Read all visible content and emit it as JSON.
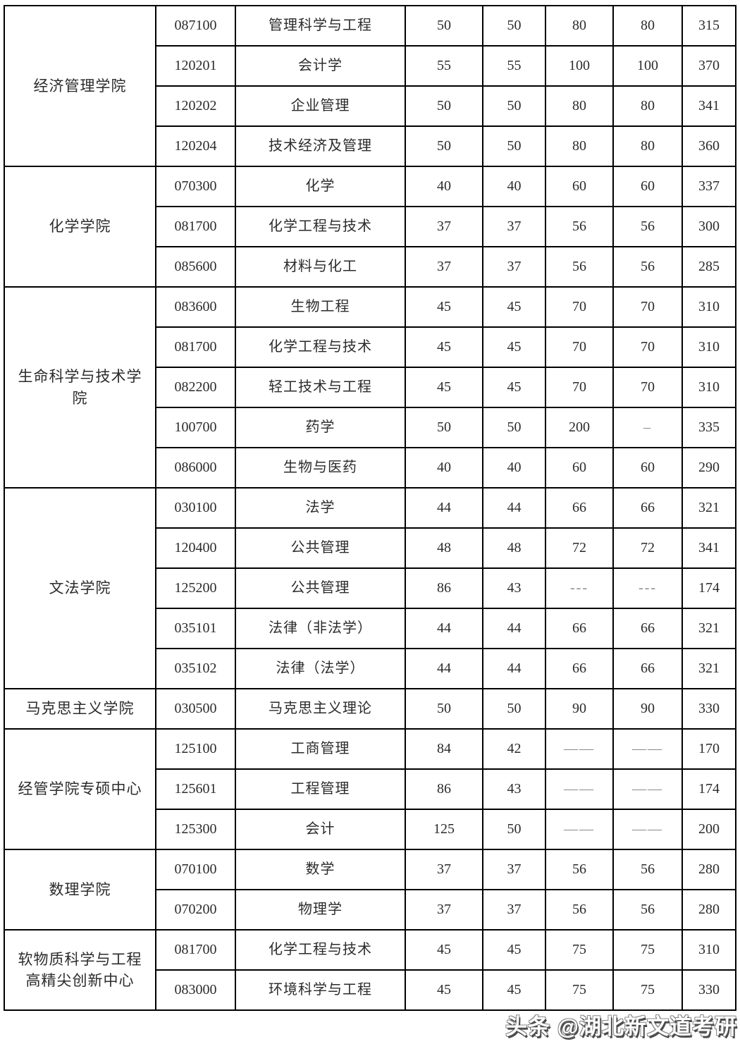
{
  "page": {
    "background_color": "#ffffff",
    "border_color": "#000000",
    "text_color": "#2b2b2b",
    "dash_color": "#8a8a8a"
  },
  "table": {
    "columns": [
      "college",
      "code",
      "major",
      "score1",
      "score2",
      "score3",
      "score4",
      "total"
    ],
    "sections": [
      {
        "college": "经济管理学院",
        "rows": [
          {
            "code": "087100",
            "major": "管理科学与工程",
            "s1": "50",
            "s2": "50",
            "s3": "80",
            "s4": "80",
            "total": "315"
          },
          {
            "code": "120201",
            "major": "会计学",
            "s1": "55",
            "s2": "55",
            "s3": "100",
            "s4": "100",
            "total": "370"
          },
          {
            "code": "120202",
            "major": "企业管理",
            "s1": "50",
            "s2": "50",
            "s3": "80",
            "s4": "80",
            "total": "341"
          },
          {
            "code": "120204",
            "major": "技术经济及管理",
            "s1": "50",
            "s2": "50",
            "s3": "80",
            "s4": "80",
            "total": "360"
          }
        ]
      },
      {
        "college": "化学学院",
        "rows": [
          {
            "code": "070300",
            "major": "化学",
            "s1": "40",
            "s2": "40",
            "s3": "60",
            "s4": "60",
            "total": "337"
          },
          {
            "code": "081700",
            "major": "化学工程与技术",
            "s1": "37",
            "s2": "37",
            "s3": "56",
            "s4": "56",
            "total": "300"
          },
          {
            "code": "085600",
            "major": "材料与化工",
            "s1": "37",
            "s2": "37",
            "s3": "56",
            "s4": "56",
            "total": "285"
          }
        ]
      },
      {
        "college": "生命科学与技术学院",
        "rows": [
          {
            "code": "083600",
            "major": "生物工程",
            "s1": "45",
            "s2": "45",
            "s3": "70",
            "s4": "70",
            "total": "310"
          },
          {
            "code": "081700",
            "major": "化学工程与技术",
            "s1": "45",
            "s2": "45",
            "s3": "70",
            "s4": "70",
            "total": "310"
          },
          {
            "code": "082200",
            "major": "轻工技术与工程",
            "s1": "45",
            "s2": "45",
            "s3": "70",
            "s4": "70",
            "total": "310"
          },
          {
            "code": "100700",
            "major": "药学",
            "s1": "50",
            "s2": "50",
            "s3": "200",
            "s4": "–",
            "total": "335"
          },
          {
            "code": "086000",
            "major": "生物与医药",
            "s1": "40",
            "s2": "40",
            "s3": "60",
            "s4": "60",
            "total": "290"
          }
        ]
      },
      {
        "college": "文法学院",
        "rows": [
          {
            "code": "030100",
            "major": "法学",
            "s1": "44",
            "s2": "44",
            "s3": "66",
            "s4": "66",
            "total": "321"
          },
          {
            "code": "120400",
            "major": "公共管理",
            "s1": "48",
            "s2": "48",
            "s3": "72",
            "s4": "72",
            "total": "341"
          },
          {
            "code": "125200",
            "major": "公共管理",
            "s1": "86",
            "s2": "43",
            "s3": "---",
            "s4": "---",
            "total": "174"
          },
          {
            "code": "035101",
            "major": "法律（非法学）",
            "s1": "44",
            "s2": "44",
            "s3": "66",
            "s4": "66",
            "total": "321"
          },
          {
            "code": "035102",
            "major": "法律（法学）",
            "s1": "44",
            "s2": "44",
            "s3": "66",
            "s4": "66",
            "total": "321"
          }
        ]
      },
      {
        "college": "马克思主义学院",
        "rows": [
          {
            "code": "030500",
            "major": "马克思主义理论",
            "s1": "50",
            "s2": "50",
            "s3": "90",
            "s4": "90",
            "total": "330"
          }
        ]
      },
      {
        "college": "经管学院专硕中心",
        "rows": [
          {
            "code": "125100",
            "major": "工商管理",
            "s1": "84",
            "s2": "42",
            "s3": "——",
            "s4": "——",
            "total": "170"
          },
          {
            "code": "125601",
            "major": "工程管理",
            "s1": "86",
            "s2": "43",
            "s3": "——",
            "s4": "——",
            "total": "174"
          },
          {
            "code": "125300",
            "major": "会计",
            "s1": "125",
            "s2": "50",
            "s3": "——",
            "s4": "——",
            "total": "200"
          }
        ]
      },
      {
        "college": "数理学院",
        "rows": [
          {
            "code": "070100",
            "major": "数学",
            "s1": "37",
            "s2": "37",
            "s3": "56",
            "s4": "56",
            "total": "280"
          },
          {
            "code": "070200",
            "major": "物理学",
            "s1": "37",
            "s2": "37",
            "s3": "56",
            "s4": "56",
            "total": "280"
          }
        ]
      },
      {
        "college": "软物质科学与工程高精尖创新中心",
        "rows": [
          {
            "code": "081700",
            "major": "化学工程与技术",
            "s1": "45",
            "s2": "45",
            "s3": "75",
            "s4": "75",
            "total": "310"
          },
          {
            "code": "083000",
            "major": "环境科学与工程",
            "s1": "45",
            "s2": "45",
            "s3": "75",
            "s4": "75",
            "total": "330"
          }
        ]
      }
    ]
  },
  "watermark": {
    "text": "头条 @湖北新文道考研",
    "text_color": "#ffffff",
    "shadow_color": "#4d4d4d"
  }
}
